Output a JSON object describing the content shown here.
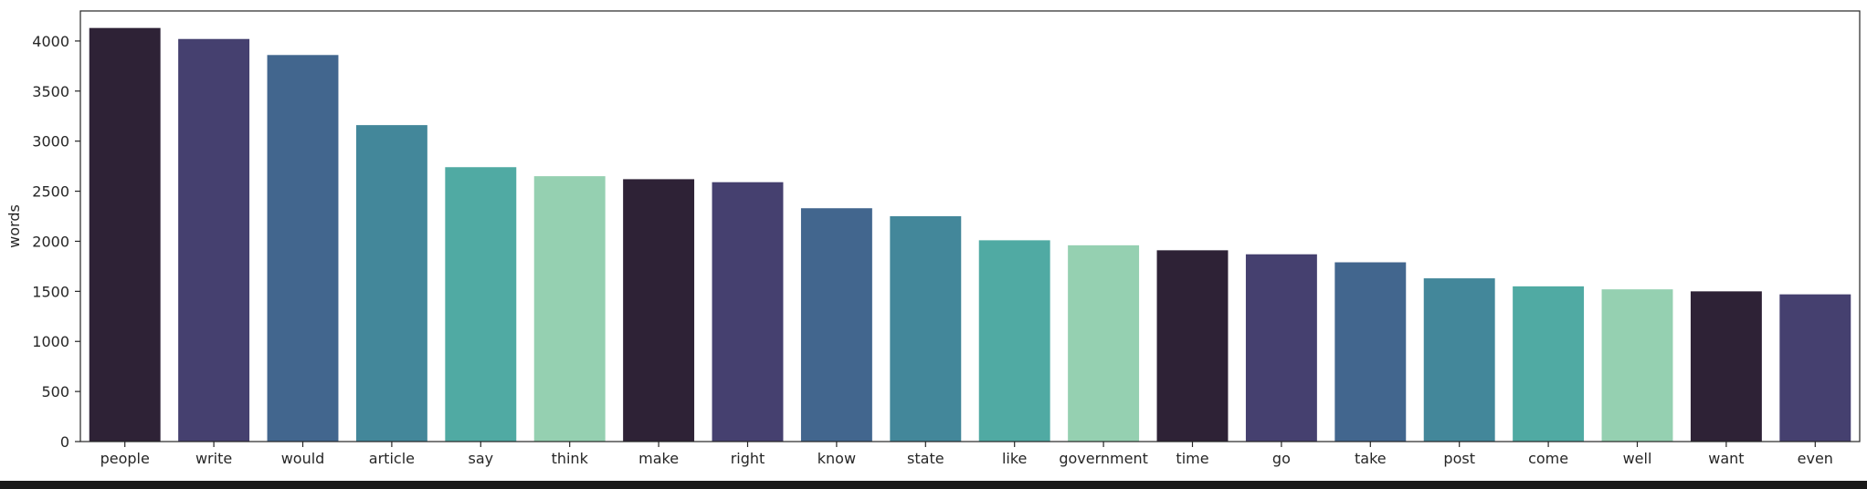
{
  "chart_data": {
    "type": "bar",
    "title": "",
    "xlabel": "",
    "ylabel": "words",
    "categories": [
      "people",
      "write",
      "would",
      "article",
      "say",
      "think",
      "make",
      "right",
      "know",
      "state",
      "like",
      "government",
      "time",
      "go",
      "take",
      "post",
      "come",
      "well",
      "want",
      "even"
    ],
    "values": [
      4130,
      4020,
      3860,
      3160,
      2740,
      2650,
      2620,
      2590,
      2330,
      2250,
      2010,
      1960,
      1910,
      1870,
      1790,
      1630,
      1550,
      1520,
      1500,
      1470
    ],
    "ylim": [
      0,
      4300
    ],
    "yticks": [
      0,
      500,
      1000,
      1500,
      2000,
      2500,
      3000,
      3500,
      4000
    ],
    "grid": false,
    "legend": "none",
    "palette": [
      "#2e2236",
      "#45406f",
      "#42668e",
      "#43879a",
      "#50aaa3",
      "#95d0b1"
    ]
  }
}
